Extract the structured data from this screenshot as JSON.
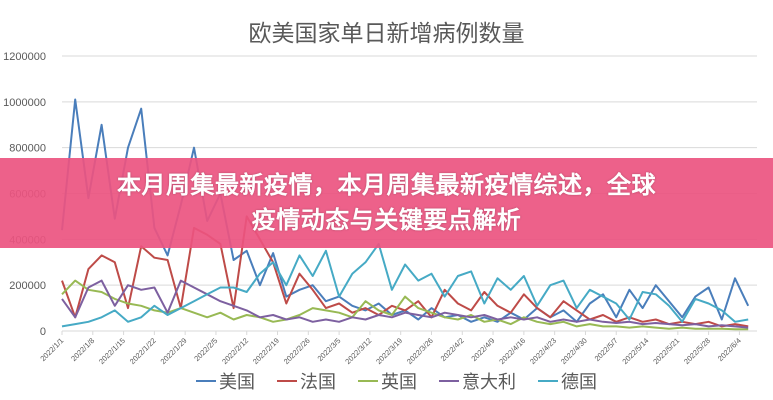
{
  "chart_data": {
    "type": "line",
    "title": "欧美国家单日新增病例数量",
    "ylim": [
      0,
      1200000
    ],
    "yticks": [
      0,
      200000,
      400000,
      600000,
      800000,
      1000000,
      1200000
    ],
    "grid": true,
    "legend_placement": "bottom",
    "xtick_labels": [
      "2022/1/1",
      "2022/1/8",
      "2022/1/15",
      "2022/1/22",
      "2022/1/29",
      "2022/2/5",
      "2022/2/12",
      "2022/2/19",
      "2022/2/26",
      "2022/3/5",
      "2022/3/12",
      "2022/3/19",
      "2022/3/26",
      "2022/4/2",
      "2022/4/9",
      "2022/4/16",
      "2022/4/23",
      "2022/4/30",
      "2022/5/7",
      "2022/5/14",
      "2022/5/21",
      "2022/5/28",
      "2022/6/4"
    ],
    "x": [
      "2022/1/1",
      "2022/1/4",
      "2022/1/7",
      "2022/1/10",
      "2022/1/13",
      "2022/1/16",
      "2022/1/19",
      "2022/1/22",
      "2022/1/25",
      "2022/1/28",
      "2022/1/31",
      "2022/2/3",
      "2022/2/6",
      "2022/2/9",
      "2022/2/12",
      "2022/2/15",
      "2022/2/18",
      "2022/2/21",
      "2022/2/24",
      "2022/2/27",
      "2022/3/2",
      "2022/3/5",
      "2022/3/8",
      "2022/3/11",
      "2022/3/14",
      "2022/3/17",
      "2022/3/20",
      "2022/3/23",
      "2022/3/26",
      "2022/3/29",
      "2022/4/1",
      "2022/4/4",
      "2022/4/7",
      "2022/4/10",
      "2022/4/13",
      "2022/4/16",
      "2022/4/19",
      "2022/4/22",
      "2022/4/25",
      "2022/4/28",
      "2022/5/1",
      "2022/5/4",
      "2022/5/7",
      "2022/5/10",
      "2022/5/13",
      "2022/5/16",
      "2022/5/19",
      "2022/5/22",
      "2022/5/25",
      "2022/5/28",
      "2022/5/31",
      "2022/6/3",
      "2022/6/6"
    ],
    "series": [
      {
        "name": "美国",
        "color": "#4a7ebb",
        "values": [
          440000,
          1010000,
          580000,
          900000,
          490000,
          800000,
          970000,
          450000,
          330000,
          550000,
          800000,
          480000,
          600000,
          310000,
          350000,
          200000,
          340000,
          150000,
          180000,
          200000,
          130000,
          150000,
          110000,
          90000,
          120000,
          70000,
          90000,
          50000,
          100000,
          60000,
          70000,
          40000,
          60000,
          40000,
          80000,
          50000,
          100000,
          60000,
          90000,
          40000,
          120000,
          160000,
          60000,
          180000,
          100000,
          200000,
          130000,
          60000,
          150000,
          190000,
          50000,
          230000,
          110000
        ]
      },
      {
        "name": "法国",
        "color": "#be4b48",
        "values": [
          220000,
          60000,
          270000,
          330000,
          300000,
          100000,
          370000,
          320000,
          310000,
          100000,
          450000,
          420000,
          380000,
          100000,
          500000,
          400000,
          300000,
          120000,
          250000,
          180000,
          100000,
          120000,
          80000,
          100000,
          70000,
          110000,
          90000,
          130000,
          60000,
          180000,
          120000,
          90000,
          170000,
          110000,
          80000,
          160000,
          100000,
          60000,
          130000,
          90000,
          50000,
          70000,
          40000,
          60000,
          40000,
          50000,
          30000,
          40000,
          30000,
          40000,
          20000,
          30000,
          20000
        ]
      },
      {
        "name": "英国",
        "color": "#98b954",
        "values": [
          160000,
          220000,
          180000,
          170000,
          140000,
          120000,
          110000,
          90000,
          80000,
          100000,
          80000,
          60000,
          80000,
          50000,
          70000,
          60000,
          40000,
          50000,
          70000,
          100000,
          90000,
          80000,
          60000,
          130000,
          90000,
          70000,
          150000,
          100000,
          80000,
          60000,
          50000,
          70000,
          40000,
          50000,
          30000,
          60000,
          40000,
          30000,
          40000,
          20000,
          30000,
          20000,
          20000,
          15000,
          20000,
          15000,
          10000,
          15000,
          10000,
          10000,
          10000,
          8000,
          8000
        ]
      },
      {
        "name": "意大利",
        "color": "#7d60a0",
        "values": [
          140000,
          60000,
          190000,
          220000,
          110000,
          200000,
          180000,
          190000,
          80000,
          220000,
          190000,
          160000,
          130000,
          110000,
          90000,
          60000,
          70000,
          50000,
          60000,
          40000,
          50000,
          40000,
          60000,
          50000,
          70000,
          60000,
          80000,
          70000,
          60000,
          80000,
          70000,
          60000,
          70000,
          50000,
          60000,
          50000,
          60000,
          40000,
          50000,
          40000,
          50000,
          40000,
          35000,
          40000,
          30000,
          35000,
          30000,
          25000,
          30000,
          20000,
          25000,
          20000,
          15000
        ]
      },
      {
        "name": "德国",
        "color": "#46aac5",
        "values": [
          20000,
          30000,
          40000,
          60000,
          90000,
          40000,
          60000,
          110000,
          70000,
          100000,
          130000,
          160000,
          190000,
          190000,
          170000,
          250000,
          300000,
          200000,
          330000,
          240000,
          350000,
          150000,
          250000,
          300000,
          380000,
          180000,
          290000,
          220000,
          250000,
          150000,
          240000,
          260000,
          120000,
          230000,
          180000,
          240000,
          110000,
          200000,
          220000,
          100000,
          180000,
          150000,
          120000,
          50000,
          170000,
          160000,
          110000,
          40000,
          140000,
          120000,
          90000,
          40000,
          50000
        ]
      }
    ]
  },
  "banner": {
    "line1": "本月周集最新疫情，本月周集最新疫情综述，全球",
    "line2": "疫情动态与关键要点解析",
    "color": "#ec5480"
  }
}
